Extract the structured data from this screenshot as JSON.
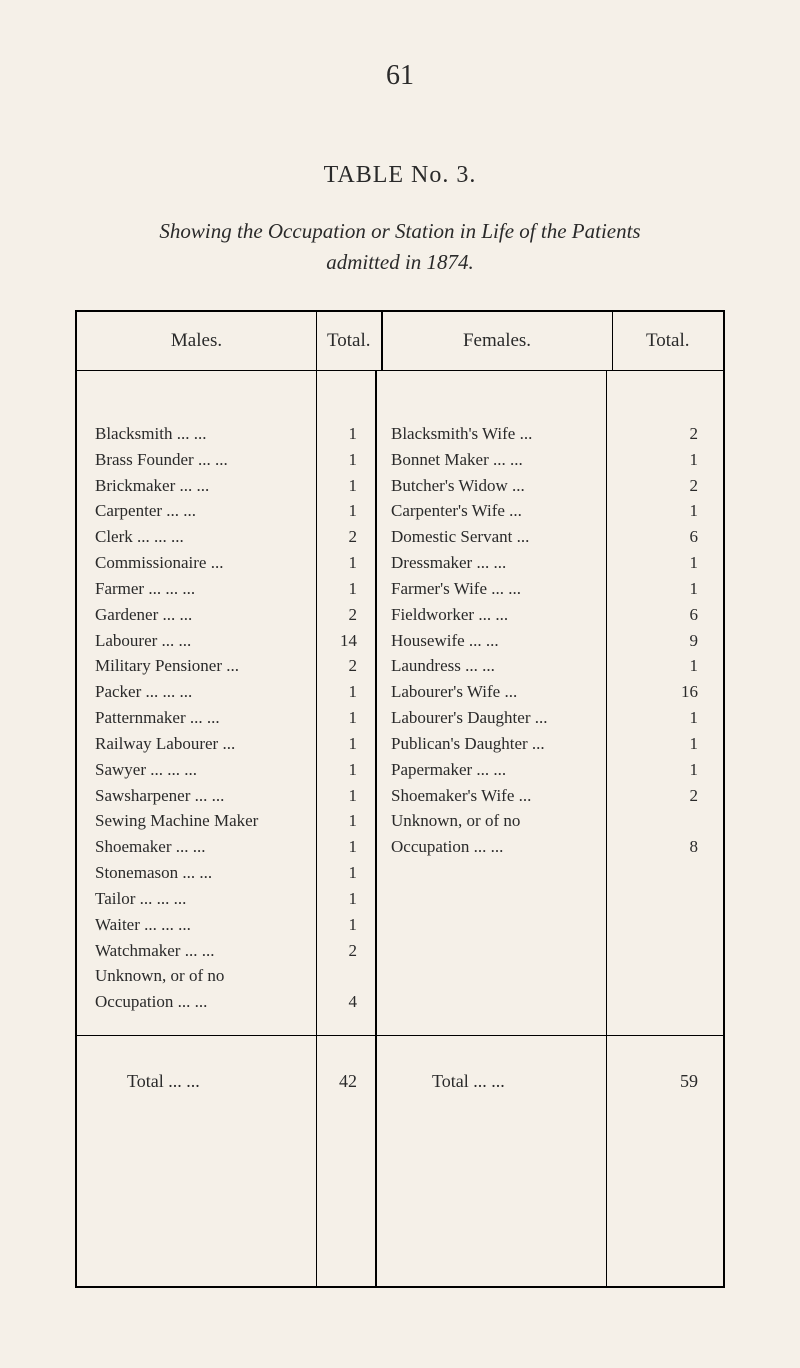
{
  "page_number": "61",
  "table_title": "TABLE No. 3.",
  "subtitle_line1": "Showing the Occupation or Station in Life of the Patients",
  "subtitle_line2": "admitted in 1874.",
  "headers": {
    "males": "Males.",
    "total1": "Total.",
    "females": "Females.",
    "total2": "Total."
  },
  "males_data": [
    {
      "label": "Blacksmith",
      "dots": "      ...      ...",
      "value": "1"
    },
    {
      "label": "Brass Founder ...",
      "dots": "      ...",
      "value": "1"
    },
    {
      "label": "Brickmaker",
      "dots": "      ...      ...",
      "value": "1"
    },
    {
      "label": "Carpenter",
      "dots": "      ...      ...",
      "value": "1"
    },
    {
      "label": "Clerk",
      "dots": "       ...      ...      ...",
      "value": "2"
    },
    {
      "label": "Commissionaire",
      "dots": "      ...",
      "value": "1"
    },
    {
      "label": "Farmer ...",
      "dots": "      ...      ...",
      "value": "1"
    },
    {
      "label": "Gardener",
      "dots": "      ...      ...",
      "value": "2"
    },
    {
      "label": "Labourer",
      "dots": "      ...      ...",
      "value": "14"
    },
    {
      "label": "Military Pensioner",
      "dots": "   ...",
      "value": "2"
    },
    {
      "label": "Packer ...",
      "dots": "      ...      ...",
      "value": "1"
    },
    {
      "label": "Patternmaker ...",
      "dots": "      ...",
      "value": "1"
    },
    {
      "label": "Railway Labourer",
      "dots": "    ...",
      "value": "1"
    },
    {
      "label": "Sawyer ...",
      "dots": "      ...      ...",
      "value": "1"
    },
    {
      "label": "Sawsharpener ...",
      "dots": "      ...",
      "value": "1"
    },
    {
      "label": "Sewing Machine Maker",
      "dots": "",
      "value": "1"
    },
    {
      "label": "Shoemaker",
      "dots": "      ...      ...",
      "value": "1"
    },
    {
      "label": "Stonemason",
      "dots": "     ...      ...",
      "value": "1"
    },
    {
      "label": "Tailor",
      "dots": "      ...      ...      ...",
      "value": "1"
    },
    {
      "label": "Waiter ...",
      "dots": "      ...      ...",
      "value": "1"
    },
    {
      "label": "Watchmaker",
      "dots": "     ...      ...",
      "value": "2"
    },
    {
      "label": "Unknown,  or   of   no",
      "dots": "",
      "value": ""
    },
    {
      "label": "   Occupation  ...",
      "dots": "      ...",
      "value": "4"
    }
  ],
  "females_data": [
    {
      "label": "Blacksmith's Wife",
      "dots": "    ...",
      "value": "2"
    },
    {
      "label": "Bonnet Maker ...",
      "dots": "     ...",
      "value": "1"
    },
    {
      "label": "Butcher's Widow",
      "dots": "     ...",
      "value": "2"
    },
    {
      "label": "Carpenter's Wife",
      "dots": "     ...",
      "value": "1"
    },
    {
      "label": "Domestic Servant",
      "dots": "    ...",
      "value": "6"
    },
    {
      "label": "Dressmaker",
      "dots": "    ...     ...",
      "value": "1"
    },
    {
      "label": "Farmer's Wife ...",
      "dots": "     ...",
      "value": "1"
    },
    {
      "label": "Fieldworker",
      "dots": "    ...     ...",
      "value": "6"
    },
    {
      "label": "Housewife",
      "dots": "     ...     ...",
      "value": "9"
    },
    {
      "label": "Laundress",
      "dots": "     ...     ...",
      "value": "1"
    },
    {
      "label": "Labourer's Wife",
      "dots": "     ...",
      "value": "16"
    },
    {
      "label": "Labourer's Daughter",
      "dots": " ...",
      "value": "1"
    },
    {
      "label": "Publican's Daughter",
      "dots": " ...",
      "value": "1"
    },
    {
      "label": "Papermaker",
      "dots": "    ...     ...",
      "value": "1"
    },
    {
      "label": "Shoemaker's Wife",
      "dots": "    ...",
      "value": "2"
    },
    {
      "label": "Unknown,  or   of   no",
      "dots": "",
      "value": ""
    },
    {
      "label": "   Occupation  ...",
      "dots": "     ...",
      "value": "8"
    }
  ],
  "footer": {
    "total_label_males": "Total      ...      ...",
    "total_value_males": "42",
    "total_label_females": "Total      ...      ...",
    "total_value_females": "59"
  }
}
